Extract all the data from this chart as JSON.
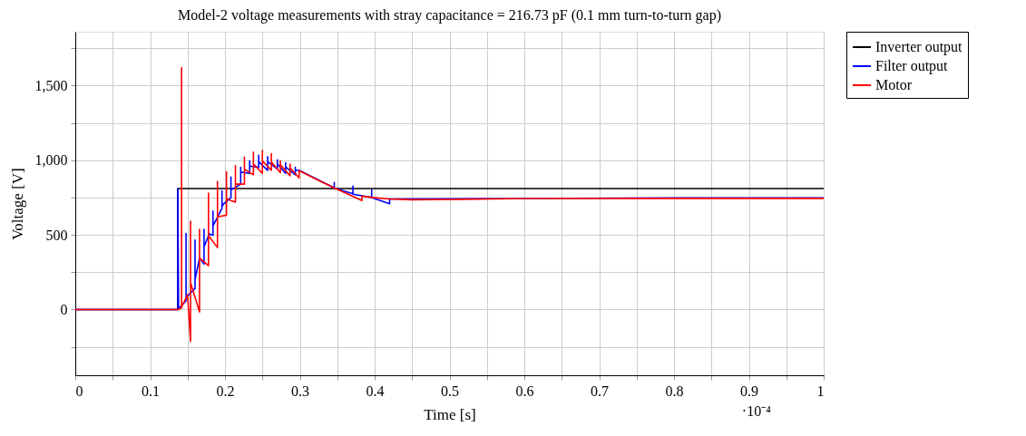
{
  "chart_data": {
    "type": "line",
    "title": "Model-2 voltage measurements with stray capacitance = 216.73 pF (0.1 mm turn-to-turn gap)",
    "xlabel": "Time [s]",
    "ylabel": "Voltage [V]",
    "annotations": [
      "·10⁻⁴"
    ],
    "xlim": [
      0,
      1
    ],
    "ylim": [
      -440,
      1860
    ],
    "xticks": [
      0,
      {
        "value": 0.05,
        "label": null
      },
      0.1,
      {
        "value": 0.15,
        "label": null
      },
      0.2,
      {
        "value": 0.25,
        "label": null
      },
      0.3,
      {
        "value": 0.35,
        "label": null
      },
      0.4,
      {
        "value": 0.45,
        "label": null
      },
      0.5,
      {
        "value": 0.55,
        "label": null
      },
      0.6,
      {
        "value": 0.65,
        "label": null
      },
      0.7,
      {
        "value": 0.75,
        "label": null
      },
      0.8,
      {
        "value": 0.85,
        "label": null
      },
      0.9,
      {
        "value": 0.95,
        "label": null
      },
      1
    ],
    "yticks": [
      {
        "value": -250,
        "label": null
      },
      0,
      {
        "value": 250,
        "label": null
      },
      500,
      {
        "value": 750,
        "label": null
      },
      {
        "value": 1000,
        "label": "1,000"
      },
      {
        "value": 1250,
        "label": null
      },
      {
        "value": 1500,
        "label": "1,500"
      },
      {
        "value": 1750,
        "label": null
      }
    ],
    "grid": true,
    "legend": "top right",
    "marker": "none",
    "line_style": "solid",
    "series": [
      {
        "name": "Inverter output",
        "color": "#000000",
        "x": [
          0,
          0.137,
          0.137,
          1
        ],
        "values": [
          0,
          0,
          810,
          810
        ]
      },
      {
        "name": "Filter output",
        "color": "#0000ff",
        "x": [
          0,
          0.137,
          0.137,
          0.138,
          0.148,
          0.148,
          0.148,
          0.16,
          0.16,
          0.16,
          0.166,
          0.172,
          0.172,
          0.172,
          0.179,
          0.184,
          0.184,
          0.184,
          0.196,
          0.196,
          0.196,
          0.199,
          0.208,
          0.208,
          0.208,
          0.221,
          0.221,
          0.221,
          0.233,
          0.233,
          0.233,
          0.245,
          0.245,
          0.245,
          0.257,
          0.257,
          0.257,
          0.27,
          0.27,
          0.27,
          0.281,
          0.281,
          0.281,
          0.294,
          0.294,
          0.294,
          0.3,
          0.346,
          0.346,
          0.346,
          0.348,
          0.371,
          0.371,
          0.371,
          0.396,
          0.396,
          0.396,
          0.42,
          0.42,
          0.8,
          1
        ],
        "values": [
          0,
          0,
          810,
          5,
          60,
          510,
          80,
          142,
          466,
          200,
          345,
          304,
          537,
          420,
          506,
          497,
          659,
          560,
          678,
          794,
          690,
          711,
          750,
          887,
          800,
          840,
          952,
          920,
          912,
          997,
          960,
          952,
          1033,
          990,
          932,
          1023,
          990,
          942,
          1003,
          975,
          912,
          983,
          955,
          902,
          952,
          935,
          930,
          815,
          851,
          812,
          810,
          775,
          827,
          772,
          750,
          800,
          750,
          709,
          740,
          748,
          748
        ]
      },
      {
        "name": "Motor",
        "color": "#ff0000",
        "x": [
          0,
          0.137,
          0.142,
          0.142,
          0.142,
          0.15,
          0.154,
          0.154,
          0.154,
          0.166,
          0.166,
          0.166,
          0.178,
          0.178,
          0.178,
          0.19,
          0.19,
          0.19,
          0.202,
          0.202,
          0.202,
          0.214,
          0.214,
          0.214,
          0.226,
          0.226,
          0.226,
          0.238,
          0.238,
          0.238,
          0.25,
          0.25,
          0.25,
          0.262,
          0.262,
          0.262,
          0.274,
          0.274,
          0.274,
          0.287,
          0.287,
          0.287,
          0.299,
          0.299,
          0.299,
          0.325,
          0.348,
          0.383,
          0.383,
          0.397,
          0.42,
          0.45,
          0.5,
          0.6,
          0.8,
          1
        ],
        "values": [
          0,
          0,
          10,
          1620,
          15,
          100,
          -213,
          592,
          180,
          -16,
          537,
          345,
          294,
          780,
          495,
          415,
          857,
          620,
          632,
          922,
          740,
          719,
          963,
          840,
          840,
          1021,
          940,
          902,
          1054,
          975,
          912,
          1064,
          995,
          932,
          1044,
          988,
          916,
          997,
          970,
          896,
          973,
          950,
          881,
          932,
          930,
          865,
          810,
          730,
          760,
          750,
          740,
          735,
          737,
          743,
          744,
          744
        ]
      }
    ]
  }
}
